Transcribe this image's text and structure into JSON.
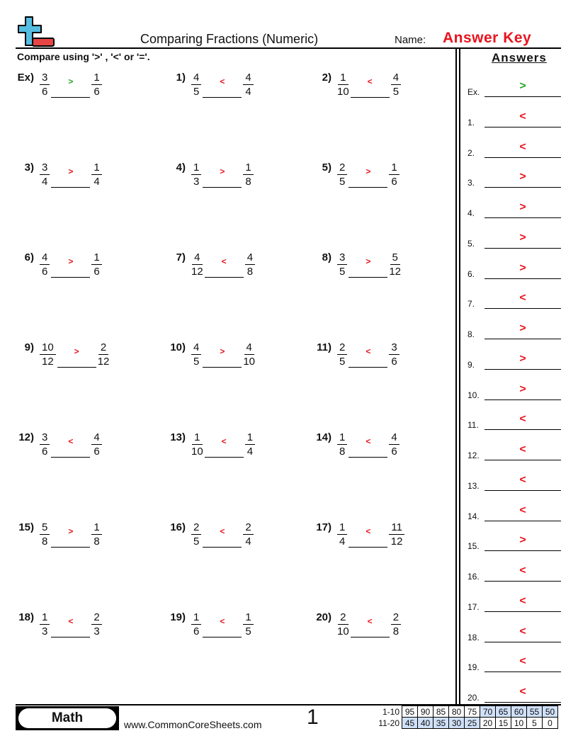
{
  "header": {
    "title": "Comparing Fractions (Numeric)",
    "name_label": "Name:",
    "name_value": "Answer Key",
    "logo": "plus-minus-logo"
  },
  "instructions": "Compare using '>' , '<' or '='.",
  "answers_title": "Answers",
  "colors": {
    "answer_red": "#e8141e",
    "example_green": "#22a822",
    "logo_blue": "#55bde0",
    "logo_red": "#e84545",
    "score_highlight": "#cfe0f8"
  },
  "problems": [
    {
      "label": "Ex)",
      "a": [
        "3",
        "6"
      ],
      "b": [
        "1",
        "6"
      ],
      "ans": ">"
    },
    {
      "label": "1)",
      "a": [
        "4",
        "5"
      ],
      "b": [
        "4",
        "4"
      ],
      "ans": "<"
    },
    {
      "label": "2)",
      "a": [
        "1",
        "10"
      ],
      "b": [
        "4",
        "5"
      ],
      "ans": "<"
    },
    {
      "label": "3)",
      "a": [
        "3",
        "4"
      ],
      "b": [
        "1",
        "4"
      ],
      "ans": ">"
    },
    {
      "label": "4)",
      "a": [
        "1",
        "3"
      ],
      "b": [
        "1",
        "8"
      ],
      "ans": ">"
    },
    {
      "label": "5)",
      "a": [
        "2",
        "5"
      ],
      "b": [
        "1",
        "6"
      ],
      "ans": ">"
    },
    {
      "label": "6)",
      "a": [
        "4",
        "6"
      ],
      "b": [
        "1",
        "6"
      ],
      "ans": ">"
    },
    {
      "label": "7)",
      "a": [
        "4",
        "12"
      ],
      "b": [
        "4",
        "8"
      ],
      "ans": "<"
    },
    {
      "label": "8)",
      "a": [
        "3",
        "5"
      ],
      "b": [
        "5",
        "12"
      ],
      "ans": ">"
    },
    {
      "label": "9)",
      "a": [
        "10",
        "12"
      ],
      "b": [
        "2",
        "12"
      ],
      "ans": ">"
    },
    {
      "label": "10)",
      "a": [
        "4",
        "5"
      ],
      "b": [
        "4",
        "10"
      ],
      "ans": ">"
    },
    {
      "label": "11)",
      "a": [
        "2",
        "5"
      ],
      "b": [
        "3",
        "6"
      ],
      "ans": "<"
    },
    {
      "label": "12)",
      "a": [
        "3",
        "6"
      ],
      "b": [
        "4",
        "6"
      ],
      "ans": "<"
    },
    {
      "label": "13)",
      "a": [
        "1",
        "10"
      ],
      "b": [
        "1",
        "4"
      ],
      "ans": "<"
    },
    {
      "label": "14)",
      "a": [
        "1",
        "8"
      ],
      "b": [
        "4",
        "6"
      ],
      "ans": "<"
    },
    {
      "label": "15)",
      "a": [
        "5",
        "8"
      ],
      "b": [
        "1",
        "8"
      ],
      "ans": ">"
    },
    {
      "label": "16)",
      "a": [
        "2",
        "5"
      ],
      "b": [
        "2",
        "4"
      ],
      "ans": "<"
    },
    {
      "label": "17)",
      "a": [
        "1",
        "4"
      ],
      "b": [
        "11",
        "12"
      ],
      "ans": "<"
    },
    {
      "label": "18)",
      "a": [
        "1",
        "3"
      ],
      "b": [
        "2",
        "3"
      ],
      "ans": "<"
    },
    {
      "label": "19)",
      "a": [
        "1",
        "6"
      ],
      "b": [
        "1",
        "5"
      ],
      "ans": "<"
    },
    {
      "label": "20)",
      "a": [
        "2",
        "10"
      ],
      "b": [
        "2",
        "8"
      ],
      "ans": "<"
    }
  ],
  "answers": [
    {
      "label": "Ex.",
      "ans": ">"
    },
    {
      "label": "1.",
      "ans": "<"
    },
    {
      "label": "2.",
      "ans": "<"
    },
    {
      "label": "3.",
      "ans": ">"
    },
    {
      "label": "4.",
      "ans": ">"
    },
    {
      "label": "5.",
      "ans": ">"
    },
    {
      "label": "6.",
      "ans": ">"
    },
    {
      "label": "7.",
      "ans": "<"
    },
    {
      "label": "8.",
      "ans": ">"
    },
    {
      "label": "9.",
      "ans": ">"
    },
    {
      "label": "10.",
      "ans": ">"
    },
    {
      "label": "11.",
      "ans": "<"
    },
    {
      "label": "12.",
      "ans": "<"
    },
    {
      "label": "13.",
      "ans": "<"
    },
    {
      "label": "14.",
      "ans": "<"
    },
    {
      "label": "15.",
      "ans": ">"
    },
    {
      "label": "16.",
      "ans": "<"
    },
    {
      "label": "17.",
      "ans": "<"
    },
    {
      "label": "18.",
      "ans": "<"
    },
    {
      "label": "19.",
      "ans": "<"
    },
    {
      "label": "20.",
      "ans": "<"
    }
  ],
  "footer": {
    "subject": "Math",
    "website": "www.CommonCoreSheets.com",
    "page": "1",
    "score_rows": [
      {
        "label": "1-10",
        "values": [
          "95",
          "90",
          "85",
          "80",
          "75",
          "70",
          "65",
          "60",
          "55",
          "50"
        ],
        "highlight": [
          false,
          false,
          false,
          false,
          false,
          true,
          true,
          true,
          true,
          true
        ]
      },
      {
        "label": "11-20",
        "values": [
          "45",
          "40",
          "35",
          "30",
          "25",
          "20",
          "15",
          "10",
          "5",
          "0"
        ],
        "highlight": [
          true,
          true,
          true,
          true,
          true,
          false,
          false,
          false,
          false,
          false
        ]
      }
    ]
  }
}
